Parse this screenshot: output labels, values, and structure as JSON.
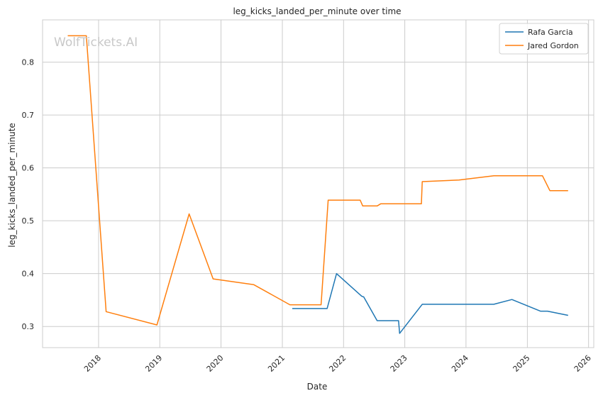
{
  "chart_data": {
    "type": "line",
    "title": "leg_kicks_landed_per_minute over time",
    "xlabel": "Date",
    "ylabel": "leg_kicks_landed_per_minute",
    "watermark": "WolfTickets.AI",
    "xlim": [
      "2017-02-01",
      "2026-02-01"
    ],
    "ylim": [
      0.26,
      0.88
    ],
    "x_ticks": [
      "2018",
      "2019",
      "2020",
      "2021",
      "2022",
      "2023",
      "2024",
      "2025",
      "2026"
    ],
    "y_ticks": [
      "0.3",
      "0.4",
      "0.5",
      "0.6",
      "0.7",
      "0.8"
    ],
    "grid": true,
    "legend_position": "top-right",
    "series": [
      {
        "name": "Rafa Garcia",
        "color": "#1f77b4",
        "points": [
          [
            "2021-03-01",
            0.334
          ],
          [
            "2021-09-25",
            0.334
          ],
          [
            "2021-11-20",
            0.4
          ],
          [
            "2022-04-20",
            0.357
          ],
          [
            "2022-05-01",
            0.356
          ],
          [
            "2022-07-20",
            0.311
          ],
          [
            "2022-11-25",
            0.311
          ],
          [
            "2022-12-01",
            0.287
          ],
          [
            "2023-04-15",
            0.342
          ],
          [
            "2024-06-15",
            0.342
          ],
          [
            "2024-10-01",
            0.351
          ],
          [
            "2025-03-20",
            0.329
          ],
          [
            "2025-05-01",
            0.329
          ],
          [
            "2025-09-01",
            0.321
          ]
        ]
      },
      {
        "name": "Jared Gordon",
        "color": "#ff7f0e",
        "points": [
          [
            "2017-07-01",
            0.85
          ],
          [
            "2017-10-20",
            0.85
          ],
          [
            "2018-02-15",
            0.328
          ],
          [
            "2018-12-15",
            0.303
          ],
          [
            "2019-06-25",
            0.513
          ],
          [
            "2019-11-15",
            0.39
          ],
          [
            "2020-07-15",
            0.379
          ],
          [
            "2021-02-15",
            0.341
          ],
          [
            "2021-08-20",
            0.341
          ],
          [
            "2021-10-01",
            0.539
          ],
          [
            "2022-04-10",
            0.539
          ],
          [
            "2022-04-25",
            0.528
          ],
          [
            "2022-07-20",
            0.528
          ],
          [
            "2022-08-10",
            0.532
          ],
          [
            "2023-04-10",
            0.532
          ],
          [
            "2023-04-15",
            0.574
          ],
          [
            "2023-11-20",
            0.577
          ],
          [
            "2024-06-15",
            0.585
          ],
          [
            "2025-04-01",
            0.585
          ],
          [
            "2025-05-15",
            0.557
          ],
          [
            "2025-09-01",
            0.557
          ]
        ]
      }
    ]
  }
}
